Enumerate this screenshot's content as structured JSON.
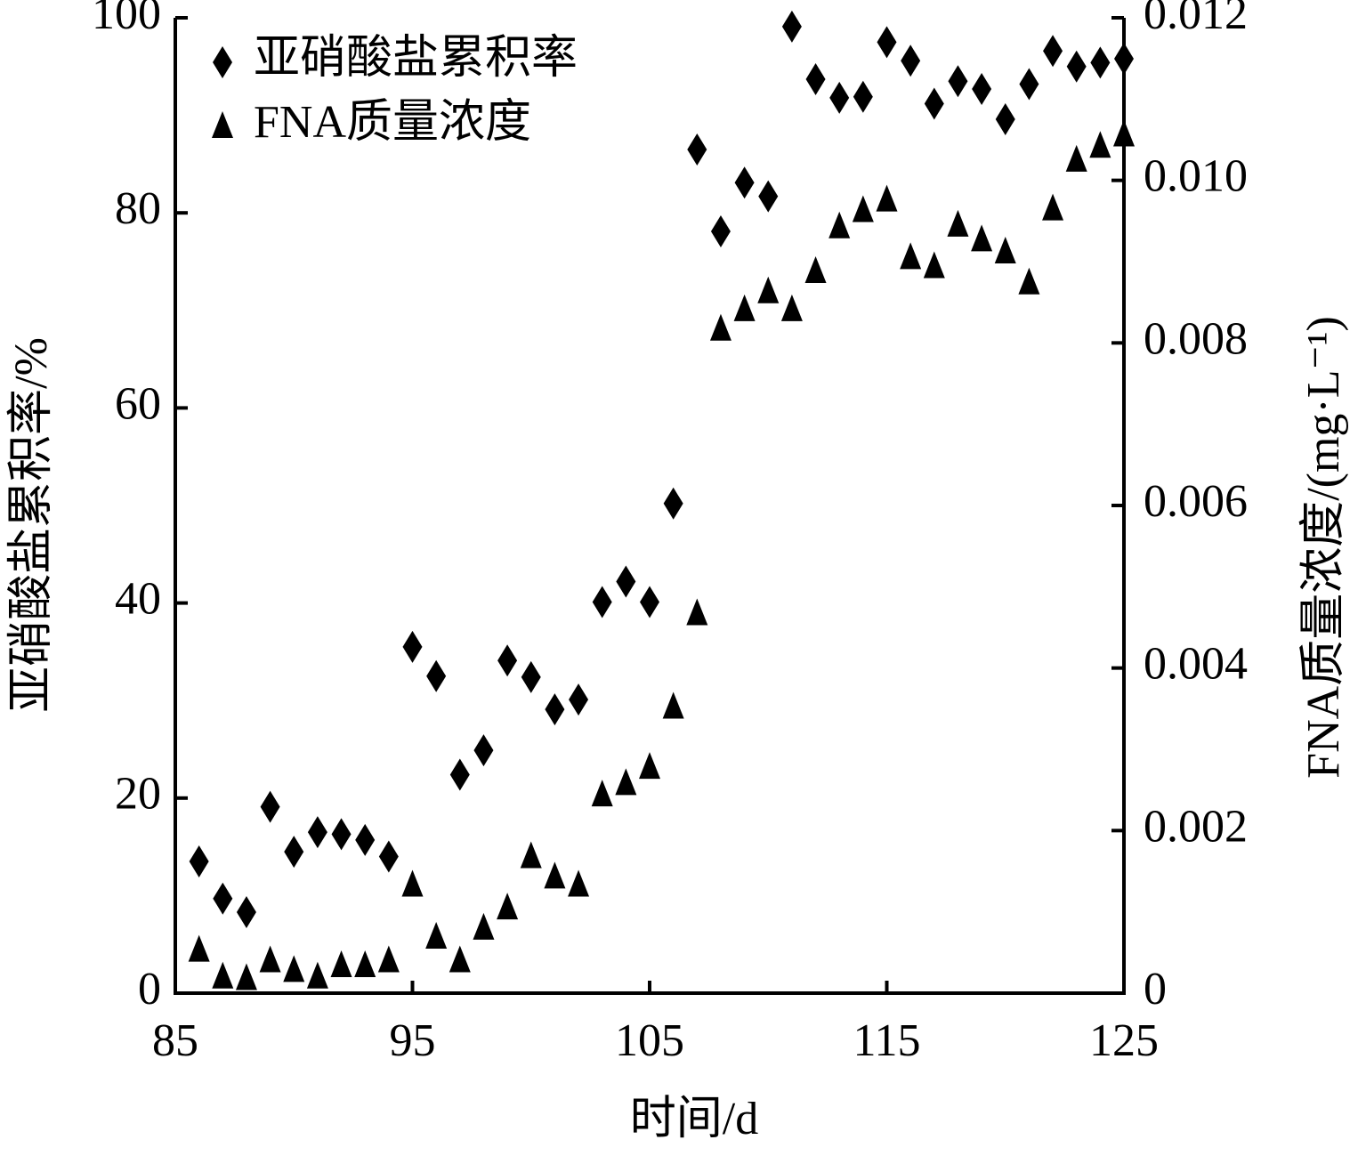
{
  "chart_data": {
    "type": "scatter",
    "x": [
      86,
      87,
      88,
      89,
      90,
      91,
      92,
      93,
      94,
      95,
      96,
      97,
      98,
      99,
      100,
      101,
      102,
      103,
      104,
      105,
      106,
      107,
      108,
      109,
      110,
      111,
      112,
      113,
      114,
      115,
      116,
      117,
      118,
      119,
      120,
      121,
      122,
      123,
      124,
      125
    ],
    "series": [
      {
        "name": "亚硝酸盐累积率",
        "color": "#000000",
        "marker": "diamond",
        "values": [
          13.5,
          9.7,
          8.3,
          19.1,
          14.5,
          16.5,
          16.3,
          15.7,
          14.0,
          35.5,
          32.5,
          22.4,
          24.9,
          34.1,
          32.4,
          29.1,
          30.1,
          40.1,
          42.2,
          40.1,
          50.2,
          86.5,
          78.1,
          83.1,
          81.7,
          99.1,
          93.7,
          91.8,
          91.9,
          97.5,
          95.6,
          91.2,
          93.5,
          92.7,
          89.6,
          93.2,
          96.6,
          95.0,
          95.4,
          95.8
        ]
      },
      {
        "name": "FNA质量浓度",
        "color": "#000000",
        "marker": "triangle",
        "axis": "y2",
        "values": [
          0.00053,
          0.0002,
          0.00018,
          0.0004,
          0.00028,
          0.0002,
          0.00034,
          0.00034,
          0.0004,
          0.00133,
          0.00069,
          0.0004,
          0.0008,
          0.00105,
          0.00168,
          0.00143,
          0.00133,
          0.00244,
          0.00258,
          0.00278,
          0.00352,
          0.00467,
          0.00817,
          0.00841,
          0.00863,
          0.00841,
          0.00888,
          0.00943,
          0.00963,
          0.00976,
          0.00905,
          0.00894,
          0.00945,
          0.00927,
          0.00912,
          0.00874,
          0.00965,
          0.01025,
          0.01042,
          0.01056
        ]
      }
    ],
    "x_label": "时间/d",
    "y_label": "亚硝酸盐累积率/%",
    "y2_label": "FNA质量浓度/(mg·L⁻¹)",
    "xlim": [
      85,
      125
    ],
    "xticks": [
      85,
      95,
      105,
      115,
      125
    ],
    "ylim": [
      0,
      100
    ],
    "yticks": [
      0,
      20,
      40,
      60,
      80,
      100
    ],
    "y2lim": [
      0,
      0.012
    ],
    "y2ticks": [
      0,
      0.002,
      0.004,
      0.006,
      {
        "value": 0.01,
        "label": "0.010"
      },
      0.008,
      0.012
    ],
    "legend": "upper left"
  }
}
